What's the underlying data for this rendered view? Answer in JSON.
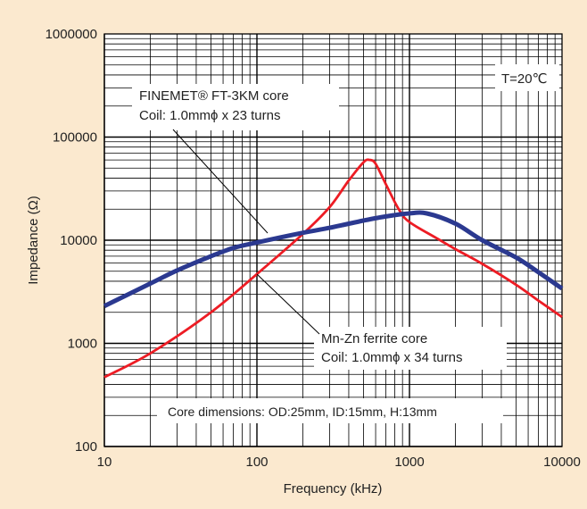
{
  "chart_data": {
    "type": "line",
    "xlabel": "Frequency (kHz)",
    "ylabel": "Impedance (Ω)",
    "x_scale": "log",
    "y_scale": "log",
    "xlim": [
      10,
      10000
    ],
    "ylim": [
      100,
      1000000
    ],
    "grid": true,
    "x_ticks": [
      "10",
      "100",
      "1000",
      "10000"
    ],
    "y_ticks": [
      "100",
      "1000",
      "10000",
      "100000",
      "1000000"
    ],
    "temperature_label": "T=20℃",
    "series": [
      {
        "color": "#2b3990",
        "x": [
          10,
          20,
          30,
          50,
          70,
          100,
          200,
          300,
          500,
          700,
          1000,
          1300,
          2000,
          3000,
          5000,
          7000,
          10000
        ],
        "y": [
          2300,
          3800,
          5100,
          7000,
          8400,
          9500,
          11800,
          13200,
          15500,
          17000,
          18200,
          18200,
          14500,
          10000,
          6800,
          4900,
          3400
        ]
      },
      {
        "color": "#ed1c24",
        "x": [
          10,
          20,
          50,
          100,
          200,
          300,
          400,
          500,
          550,
          600,
          700,
          850,
          1000,
          1500,
          2000,
          3000,
          5000,
          7000,
          10000
        ],
        "y": [
          470,
          800,
          2000,
          4700,
          11500,
          21000,
          38000,
          57000,
          60000,
          55000,
          35000,
          20000,
          15000,
          10500,
          8200,
          5900,
          3700,
          2600,
          1800
        ]
      }
    ],
    "annotations": [
      {
        "lines": [
          "FINEMET® FT-3KM core",
          "Coil: 1.0mmϕ x 23 turns"
        ]
      },
      {
        "lines": [
          "Mn-Zn ferrite core",
          "Coil: 1.0mmϕ x 34 turns"
        ]
      },
      {
        "lines": [
          "Core dimensions: OD:25mm, ID:15mm, H:13mm"
        ]
      }
    ]
  }
}
